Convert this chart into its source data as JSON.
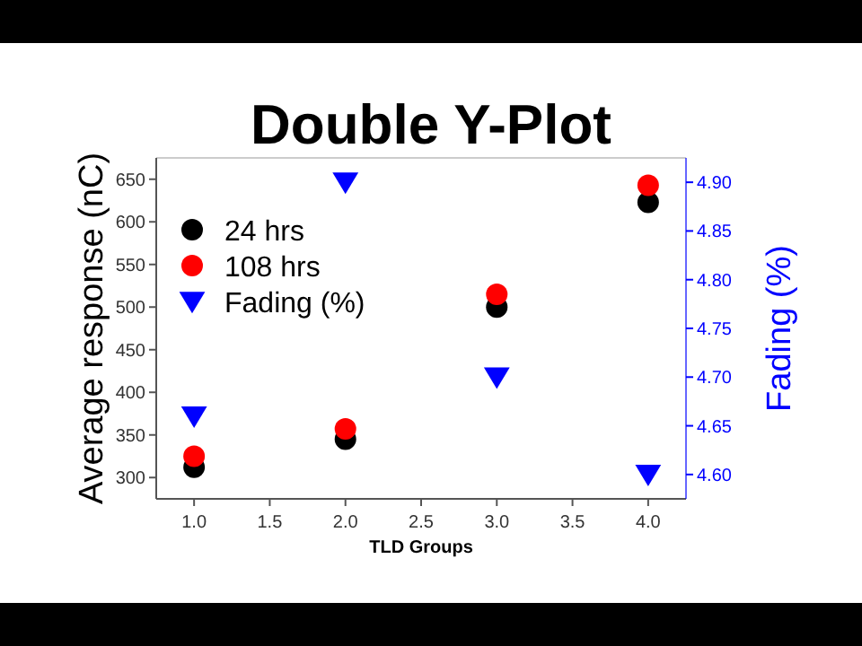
{
  "chart_data": {
    "type": "scatter",
    "title": "Double Y-Plot",
    "xlabel": "TLD Groups",
    "ylabel": "Average response (nC)",
    "y2label": "Fading (%)",
    "x": [
      1,
      2,
      3,
      4
    ],
    "series": [
      {
        "name": "24 hrs",
        "color": "#000000",
        "values": [
          312,
          345,
          500,
          623
        ]
      },
      {
        "name": "108 hrs",
        "color": "#ff0000",
        "values": [
          325,
          357,
          515,
          643
        ]
      },
      {
        "name": "Fading (%)",
        "color": "#0000ff",
        "values": [
          4.66,
          4.9,
          4.7,
          4.6
        ],
        "axis": "y2",
        "marker": "triangle"
      }
    ],
    "marker": "circle",
    "legend": "top left",
    "xlim": [
      0.75,
      4.25
    ],
    "xticks": [
      {
        "value": 1,
        "label": "1.0"
      },
      {
        "value": 1.5,
        "label": "1.5"
      },
      {
        "value": 2,
        "label": "2.0"
      },
      {
        "value": 2.5,
        "label": "2.5"
      },
      {
        "value": 3,
        "label": "3.0"
      },
      {
        "value": 3.5,
        "label": "3.5"
      },
      {
        "value": 4,
        "label": "4.0"
      }
    ],
    "ylim": [
      275,
      675
    ],
    "yticks": [
      300,
      350,
      400,
      450,
      500,
      550,
      600,
      650
    ],
    "y2lim": [
      4.575,
      4.925
    ],
    "y2ticks": [
      {
        "value": 4.6,
        "label": "4.60"
      },
      {
        "value": 4.65,
        "label": "4.65"
      },
      {
        "value": 4.7,
        "label": "4.70"
      },
      {
        "value": 4.75,
        "label": "4.75"
      },
      {
        "value": 4.8,
        "label": "4.80"
      },
      {
        "value": 4.85,
        "label": "4.85"
      },
      {
        "value": 4.9,
        "label": "4.90"
      }
    ]
  }
}
